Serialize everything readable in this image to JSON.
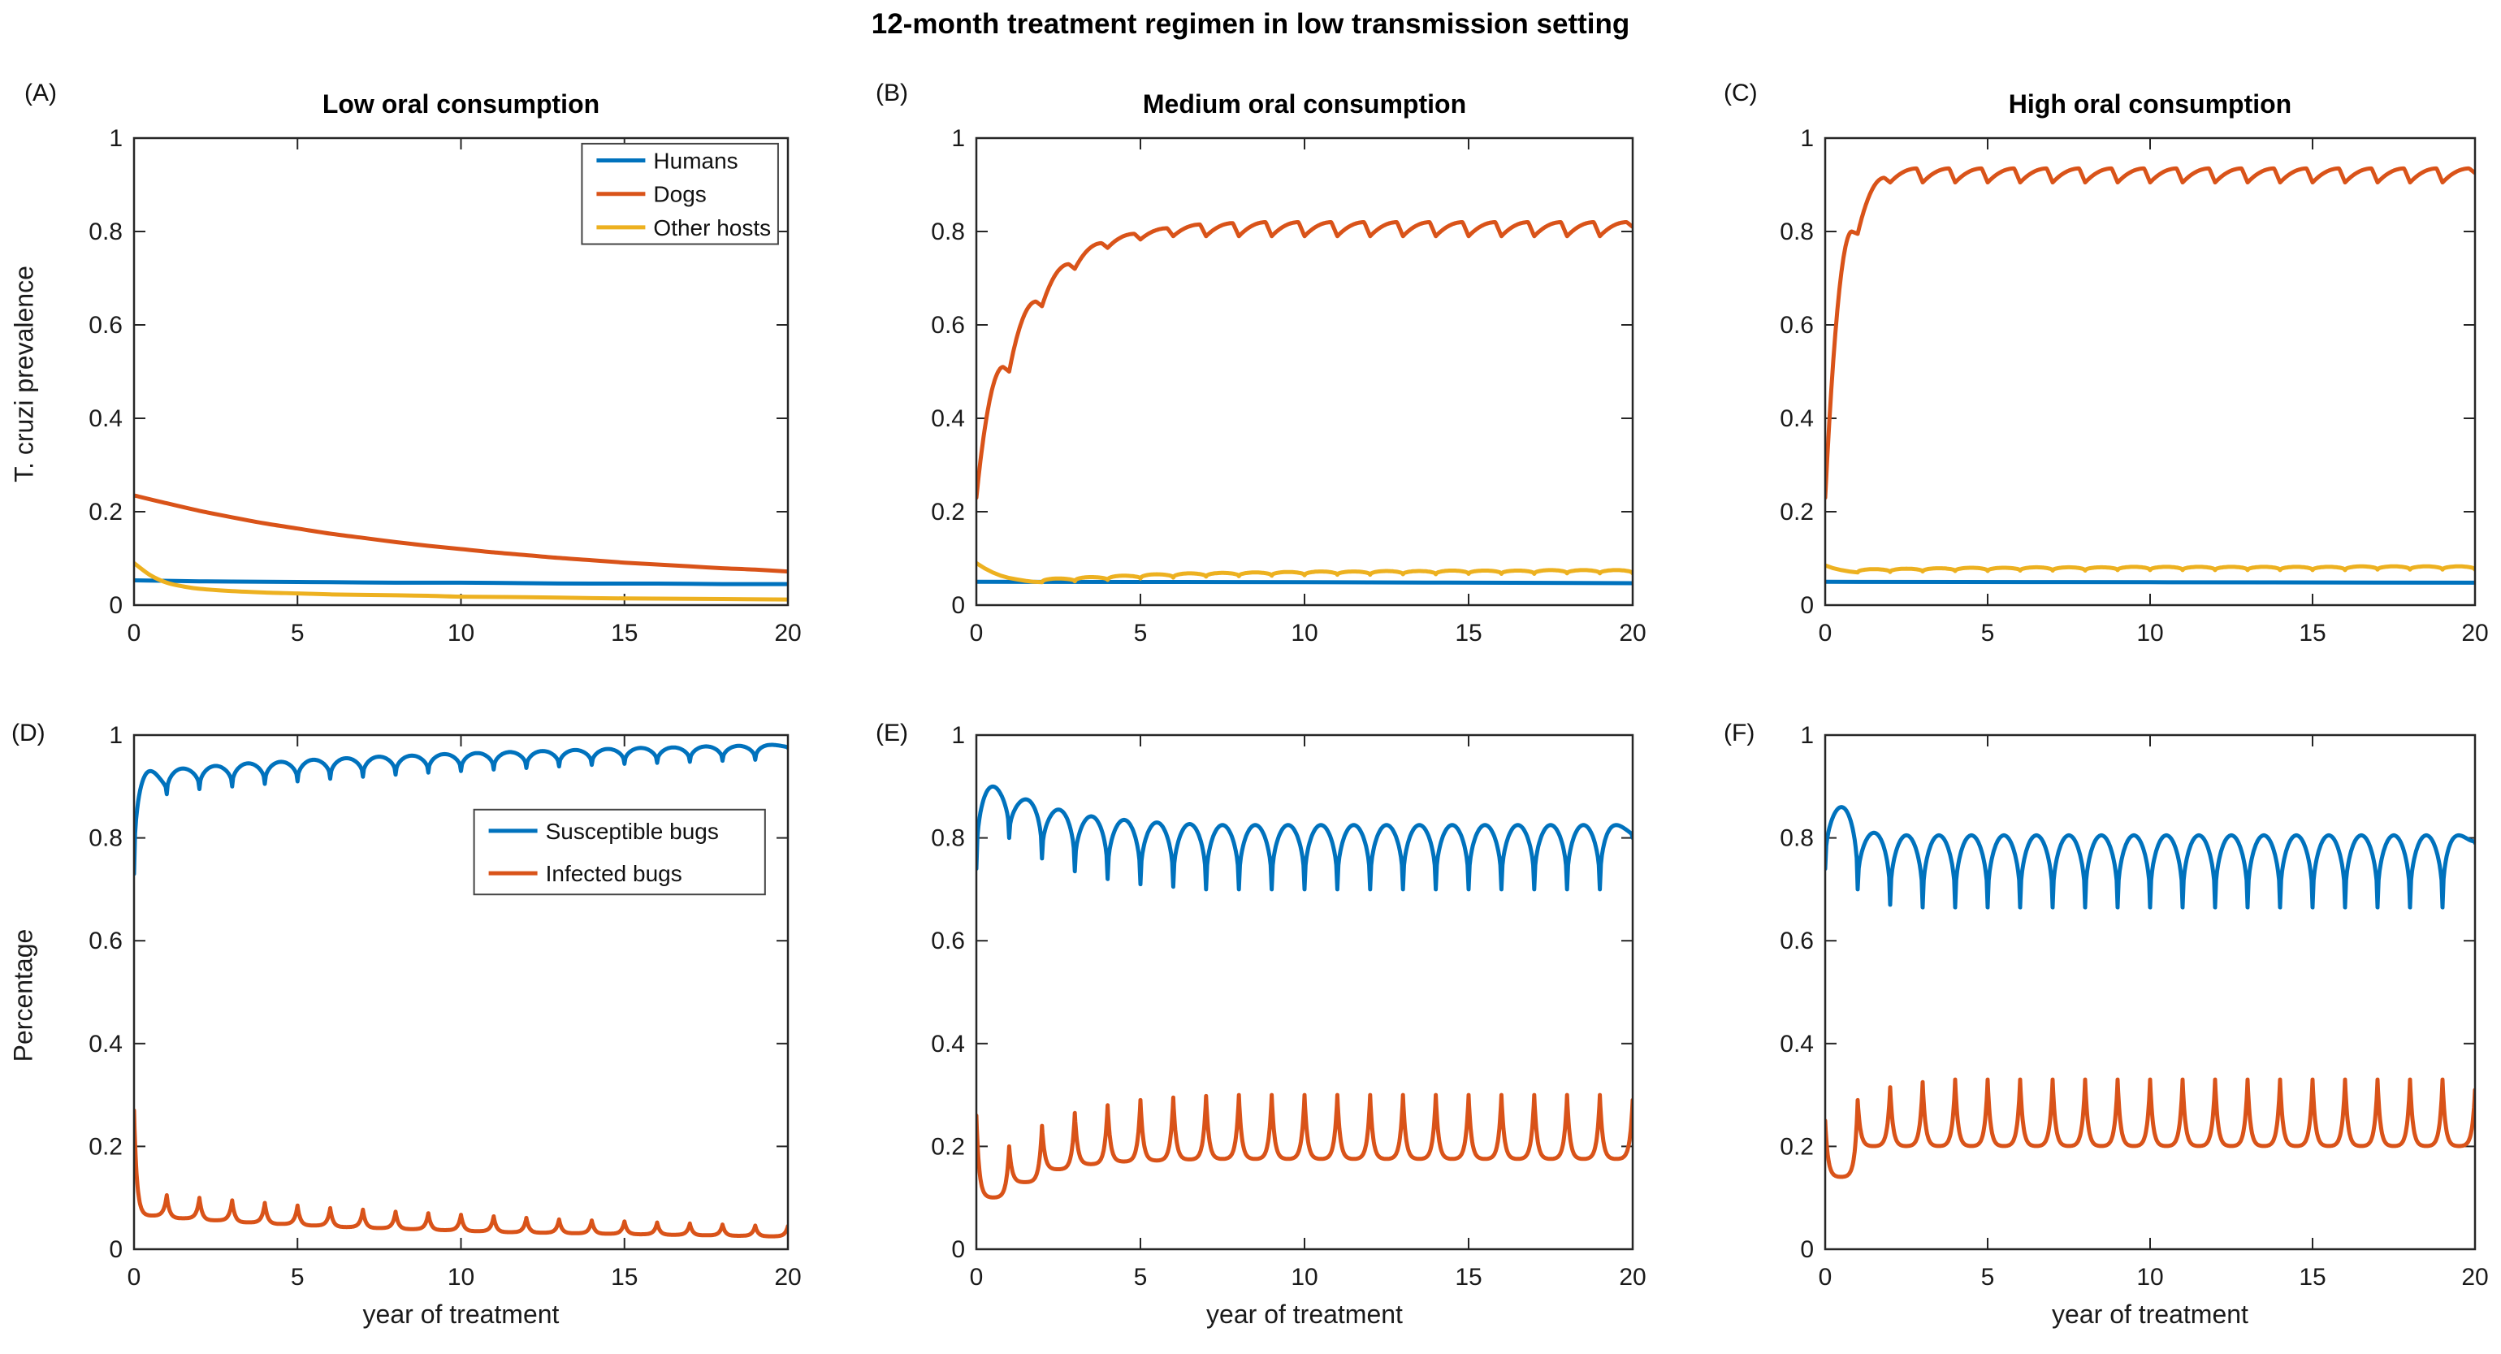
{
  "figure": {
    "suptitle": "12-month treatment regimen in low transmission setting",
    "colors": {
      "blue": "#0072BD",
      "orange": "#D95319",
      "yellow": "#EDB120",
      "axis": "#262626",
      "text": "#1a1a1a"
    }
  },
  "chart_data": {
    "type": "line",
    "suptitle": "12-month treatment regimen in low transmission setting",
    "xlim": [
      0,
      20
    ],
    "ylim": [
      0,
      1
    ],
    "x_ticks": [
      0,
      5,
      10,
      15,
      20
    ],
    "y_ticks": [
      0,
      0.2,
      0.4,
      0.6,
      0.8,
      1
    ],
    "y_tick_labels": [
      "0",
      "0.2",
      "0.4",
      "0.6",
      "0.8",
      "1"
    ],
    "x_label": "year of treatment",
    "grid": false,
    "panels": [
      {
        "id": "A",
        "label": "(A)",
        "title": "Low oral consumption",
        "y_label": "T. cruzi prevalence",
        "legend": {
          "show": true,
          "x": 0.685,
          "y": 0.012,
          "w": 0.3,
          "h": 0.215
        },
        "series": [
          {
            "name": "Humans",
            "color": "#0072BD",
            "mode": "points",
            "points": [
              [
                0,
                0.053
              ],
              [
                2,
                0.051
              ],
              [
                4,
                0.05
              ],
              [
                6,
                0.049
              ],
              [
                8,
                0.048
              ],
              [
                10,
                0.048
              ],
              [
                12,
                0.047
              ],
              [
                14,
                0.046
              ],
              [
                16,
                0.046
              ],
              [
                18,
                0.045
              ],
              [
                20,
                0.045
              ]
            ]
          },
          {
            "name": "Dogs",
            "color": "#D95319",
            "mode": "points",
            "points": [
              [
                0,
                0.235
              ],
              [
                1,
                0.218
              ],
              [
                2,
                0.202
              ],
              [
                3,
                0.188
              ],
              [
                4,
                0.175
              ],
              [
                5,
                0.164
              ],
              [
                6,
                0.153
              ],
              [
                7,
                0.144
              ],
              [
                8,
                0.135
              ],
              [
                9,
                0.127
              ],
              [
                10,
                0.12
              ],
              [
                11,
                0.113
              ],
              [
                12,
                0.107
              ],
              [
                13,
                0.101
              ],
              [
                14,
                0.096
              ],
              [
                15,
                0.091
              ],
              [
                16,
                0.087
              ],
              [
                17,
                0.083
              ],
              [
                18,
                0.079
              ],
              [
                19,
                0.076
              ],
              [
                20,
                0.072
              ]
            ]
          },
          {
            "name": "Other hosts",
            "color": "#EDB120",
            "mode": "points",
            "points": [
              [
                0,
                0.09
              ],
              [
                0.5,
                0.064
              ],
              [
                1,
                0.048
              ],
              [
                1.5,
                0.04
              ],
              [
                2,
                0.035
              ],
              [
                3,
                0.03
              ],
              [
                4,
                0.027
              ],
              [
                5,
                0.025
              ],
              [
                6,
                0.023
              ],
              [
                7,
                0.022
              ],
              [
                8,
                0.021
              ],
              [
                9,
                0.02
              ],
              [
                10,
                0.018
              ],
              [
                12,
                0.017
              ],
              [
                14,
                0.015
              ],
              [
                16,
                0.014
              ],
              [
                18,
                0.013
              ],
              [
                20,
                0.012
              ]
            ]
          }
        ]
      },
      {
        "id": "B",
        "label": "(B)",
        "title": "Medium oral consumption",
        "legend": {
          "show": false
        },
        "series": [
          {
            "name": "Humans",
            "color": "#0072BD",
            "mode": "points",
            "points": [
              [
                0,
                0.05
              ],
              [
                10,
                0.049
              ],
              [
                20,
                0.047
              ]
            ]
          },
          {
            "name": "Dogs",
            "color": "#D95319",
            "mode": "osc",
            "shape": "scallop",
            "start_year": 0,
            "boundaries": [
              0.23,
              0.5,
              0.64,
              0.72,
              0.765,
              0.783,
              0.79,
              0.79,
              0.79,
              0.79,
              0.79,
              0.79,
              0.79,
              0.79,
              0.79,
              0.79,
              0.79,
              0.79,
              0.79,
              0.79,
              0.81
            ],
            "extremes": [
              0.51,
              0.65,
              0.73,
              0.775,
              0.795,
              0.807,
              0.815,
              0.818,
              0.82,
              0.82,
              0.82,
              0.82,
              0.82,
              0.82,
              0.82,
              0.82,
              0.82,
              0.82,
              0.82,
              0.82
            ]
          },
          {
            "name": "Other hosts",
            "color": "#EDB120",
            "mode": "osc",
            "shape": "dome",
            "start_year": 2,
            "intro": [
              [
                0,
                0.09
              ],
              [
                0.25,
                0.079
              ],
              [
                0.5,
                0.07
              ],
              [
                0.75,
                0.063
              ],
              [
                1,
                0.058
              ],
              [
                1.25,
                0.055
              ],
              [
                1.5,
                0.052
              ],
              [
                1.75,
                0.05
              ],
              [
                2,
                0.049
              ]
            ],
            "boundaries": [
              0.049,
              0.051,
              0.054,
              0.057,
              0.059,
              0.061,
              0.062,
              0.063,
              0.064,
              0.065,
              0.065,
              0.066,
              0.066,
              0.067,
              0.067,
              0.067,
              0.068,
              0.068,
              0.068
            ],
            "extremes": [
              0.057,
              0.06,
              0.063,
              0.066,
              0.068,
              0.069,
              0.07,
              0.071,
              0.072,
              0.072,
              0.073,
              0.073,
              0.074,
              0.074,
              0.074,
              0.075,
              0.075,
              0.075
            ]
          }
        ]
      },
      {
        "id": "C",
        "label": "(C)",
        "title": "High oral consumption",
        "legend": {
          "show": false
        },
        "series": [
          {
            "name": "Humans",
            "color": "#0072BD",
            "mode": "points",
            "points": [
              [
                0,
                0.05
              ],
              [
                10,
                0.049
              ],
              [
                20,
                0.048
              ]
            ]
          },
          {
            "name": "Dogs",
            "color": "#D95319",
            "mode": "osc",
            "shape": "scallop",
            "start_year": 0,
            "boundaries": [
              0.23,
              0.795,
              0.905,
              0.905,
              0.905,
              0.905,
              0.905,
              0.905,
              0.905,
              0.905,
              0.905,
              0.905,
              0.905,
              0.905,
              0.905,
              0.905,
              0.905,
              0.905,
              0.905,
              0.905,
              0.925
            ],
            "extremes": [
              0.8,
              0.915,
              0.935,
              0.935,
              0.935,
              0.935,
              0.935,
              0.935,
              0.935,
              0.935,
              0.935,
              0.935,
              0.935,
              0.935,
              0.935,
              0.935,
              0.935,
              0.935,
              0.935,
              0.935
            ]
          },
          {
            "name": "Other hosts",
            "color": "#EDB120",
            "mode": "osc",
            "shape": "dome",
            "start_year": 1,
            "intro": [
              [
                0,
                0.085
              ],
              [
                0.25,
                0.079
              ],
              [
                0.5,
                0.075
              ],
              [
                0.75,
                0.072
              ],
              [
                1,
                0.07
              ]
            ],
            "boundaries": [
              0.07,
              0.071,
              0.072,
              0.073,
              0.073,
              0.074,
              0.074,
              0.074,
              0.075,
              0.075,
              0.075,
              0.075,
              0.075,
              0.075,
              0.075,
              0.075,
              0.076,
              0.076,
              0.076,
              0.076
            ],
            "extremes": [
              0.077,
              0.078,
              0.079,
              0.08,
              0.08,
              0.081,
              0.081,
              0.081,
              0.082,
              0.082,
              0.082,
              0.082,
              0.082,
              0.082,
              0.082,
              0.083,
              0.083,
              0.083,
              0.083
            ]
          }
        ]
      },
      {
        "id": "D",
        "label": "(D)",
        "title": "",
        "y_label": "Percentage",
        "x_label_shown": true,
        "legend": {
          "show": true,
          "x": 0.52,
          "y": 0.145,
          "w": 0.445,
          "h": 0.165
        },
        "series": [
          {
            "name": "Susceptible bugs",
            "color": "#0072BD",
            "mode": "osc",
            "shape": "dome",
            "start_year": 0,
            "boundaries": [
              0.73,
              0.885,
              0.895,
              0.9,
              0.905,
              0.91,
              0.915,
              0.919,
              0.923,
              0.927,
              0.93,
              0.933,
              0.936,
              0.939,
              0.942,
              0.944,
              0.946,
              0.948,
              0.95,
              0.952,
              0.975
            ],
            "extremes": [
              0.93,
              0.935,
              0.94,
              0.945,
              0.948,
              0.952,
              0.955,
              0.958,
              0.96,
              0.963,
              0.965,
              0.967,
              0.969,
              0.971,
              0.973,
              0.975,
              0.976,
              0.978,
              0.979,
              0.981
            ]
          },
          {
            "name": "Infected bugs",
            "color": "#D95319",
            "mode": "osc",
            "shape": "spike",
            "start_year": 0,
            "boundaries": [
              0.27,
              0.105,
              0.1,
              0.095,
              0.09,
              0.085,
              0.08,
              0.077,
              0.073,
              0.07,
              0.067,
              0.064,
              0.061,
              0.058,
              0.056,
              0.054,
              0.052,
              0.05,
              0.048,
              0.046,
              0.045
            ],
            "extremes": [
              0.065,
              0.06,
              0.056,
              0.052,
              0.049,
              0.046,
              0.043,
              0.041,
              0.039,
              0.037,
              0.035,
              0.033,
              0.032,
              0.031,
              0.03,
              0.029,
              0.028,
              0.027,
              0.026,
              0.025
            ]
          }
        ]
      },
      {
        "id": "E",
        "label": "(E)",
        "title": "",
        "x_label_shown": true,
        "legend": {
          "show": false
        },
        "series": [
          {
            "name": "Susceptible bugs",
            "color": "#0072BD",
            "mode": "osc",
            "shape": "dome",
            "start_year": 0,
            "boundaries": [
              0.74,
              0.8,
              0.76,
              0.735,
              0.72,
              0.71,
              0.705,
              0.7,
              0.7,
              0.7,
              0.7,
              0.7,
              0.7,
              0.7,
              0.7,
              0.7,
              0.7,
              0.7,
              0.7,
              0.7,
              0.8
            ],
            "extremes": [
              0.9,
              0.875,
              0.855,
              0.842,
              0.835,
              0.83,
              0.827,
              0.825,
              0.825,
              0.825,
              0.825,
              0.825,
              0.825,
              0.825,
              0.825,
              0.825,
              0.825,
              0.825,
              0.825,
              0.825
            ]
          },
          {
            "name": "Infected bugs",
            "color": "#D95319",
            "mode": "osc",
            "shape": "spike",
            "start_year": 0,
            "boundaries": [
              0.26,
              0.2,
              0.24,
              0.265,
              0.28,
              0.29,
              0.295,
              0.298,
              0.3,
              0.3,
              0.3,
              0.3,
              0.3,
              0.3,
              0.3,
              0.3,
              0.3,
              0.3,
              0.3,
              0.3,
              0.29
            ],
            "extremes": [
              0.1,
              0.13,
              0.155,
              0.165,
              0.17,
              0.172,
              0.174,
              0.175,
              0.175,
              0.175,
              0.175,
              0.175,
              0.175,
              0.175,
              0.175,
              0.175,
              0.175,
              0.175,
              0.175,
              0.175
            ]
          }
        ]
      },
      {
        "id": "F",
        "label": "(F)",
        "title": "",
        "x_label_shown": true,
        "legend": {
          "show": false
        },
        "series": [
          {
            "name": "Susceptible bugs",
            "color": "#0072BD",
            "mode": "osc",
            "shape": "dome",
            "start_year": 0,
            "boundaries": [
              0.74,
              0.7,
              0.67,
              0.665,
              0.665,
              0.665,
              0.665,
              0.665,
              0.665,
              0.665,
              0.665,
              0.665,
              0.665,
              0.665,
              0.665,
              0.665,
              0.665,
              0.665,
              0.665,
              0.665,
              0.79
            ],
            "extremes": [
              0.86,
              0.81,
              0.805,
              0.805,
              0.805,
              0.805,
              0.805,
              0.805,
              0.805,
              0.805,
              0.805,
              0.805,
              0.805,
              0.805,
              0.805,
              0.805,
              0.805,
              0.805,
              0.805,
              0.805
            ]
          },
          {
            "name": "Infected bugs",
            "color": "#D95319",
            "mode": "osc",
            "shape": "spike",
            "start_year": 0,
            "boundaries": [
              0.25,
              0.29,
              0.315,
              0.325,
              0.33,
              0.33,
              0.33,
              0.33,
              0.33,
              0.33,
              0.33,
              0.33,
              0.33,
              0.33,
              0.33,
              0.33,
              0.33,
              0.33,
              0.33,
              0.33,
              0.31
            ],
            "extremes": [
              0.14,
              0.2,
              0.2,
              0.2,
              0.2,
              0.2,
              0.2,
              0.2,
              0.2,
              0.2,
              0.2,
              0.2,
              0.2,
              0.2,
              0.2,
              0.2,
              0.2,
              0.2,
              0.2,
              0.2
            ]
          }
        ]
      }
    ]
  }
}
